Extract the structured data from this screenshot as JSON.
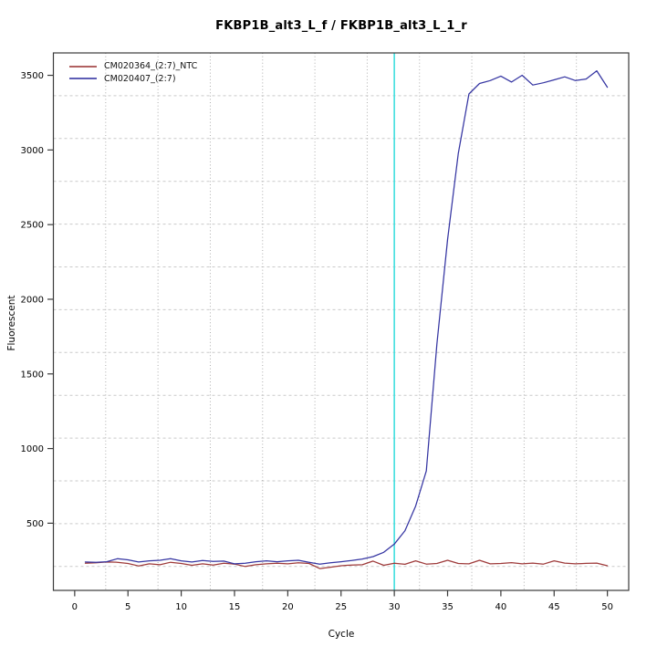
{
  "figure": {
    "title": "FKBP1B_alt3_L_f / FKBP1B_alt3_L_1_r",
    "xlabel": "Cycle",
    "ylabel": "Fluorescent"
  },
  "legend": {
    "items": [
      {
        "label": "CM020364_(2:7)_NTC",
        "color": "#9e3a3a"
      },
      {
        "label": "CM020407_(2:7)",
        "color": "#3535a2"
      }
    ]
  },
  "chart_data": {
    "type": "line",
    "title": "FKBP1B_alt3_L_f / FKBP1B_alt3_L_1_r",
    "xlabel": "Cycle",
    "ylabel": "Fluorescent",
    "x_ticks": [
      0,
      5,
      10,
      15,
      20,
      25,
      30,
      35,
      40,
      45,
      50
    ],
    "y_ticks": [
      500,
      1000,
      1500,
      2000,
      2500,
      3000,
      3500
    ],
    "xlim": [
      -2,
      52
    ],
    "ylim": [
      50,
      3650
    ],
    "grid": true,
    "legend_position": "top-left",
    "threshold_line": {
      "x": 30,
      "color": "#3fdede"
    },
    "x": [
      1,
      2,
      3,
      4,
      5,
      6,
      7,
      8,
      9,
      10,
      11,
      12,
      13,
      14,
      15,
      16,
      17,
      18,
      19,
      20,
      21,
      22,
      23,
      24,
      25,
      26,
      27,
      28,
      29,
      30,
      31,
      32,
      33,
      34,
      35,
      36,
      37,
      38,
      39,
      40,
      41,
      42,
      43,
      44,
      45,
      46,
      47,
      48,
      49,
      50
    ],
    "series": [
      {
        "name": "CM020364_(2:7)_NTC",
        "color": "#9e3a3a",
        "values": [
          232,
          235,
          240,
          238,
          230,
          214,
          228,
          222,
          238,
          230,
          218,
          228,
          220,
          232,
          226,
          210,
          222,
          228,
          232,
          228,
          235,
          230,
          196,
          205,
          215,
          220,
          222,
          246,
          218,
          232,
          225,
          248,
          226,
          230,
          252,
          230,
          228,
          252,
          228,
          230,
          236,
          228,
          233,
          226,
          248,
          233,
          228,
          231,
          233,
          215
        ]
      },
      {
        "name": "CM020407_(2:7)",
        "color": "#3535a2",
        "values": [
          240,
          238,
          242,
          262,
          255,
          240,
          248,
          252,
          262,
          248,
          240,
          250,
          244,
          246,
          228,
          232,
          242,
          248,
          242,
          248,
          252,
          238,
          226,
          235,
          242,
          250,
          260,
          276,
          305,
          360,
          450,
          615,
          850,
          1700,
          2400,
          2975,
          3375,
          3445,
          3465,
          3495,
          3455,
          3500,
          3435,
          3450,
          3470,
          3490,
          3465,
          3475,
          3530,
          3420
        ]
      }
    ]
  }
}
